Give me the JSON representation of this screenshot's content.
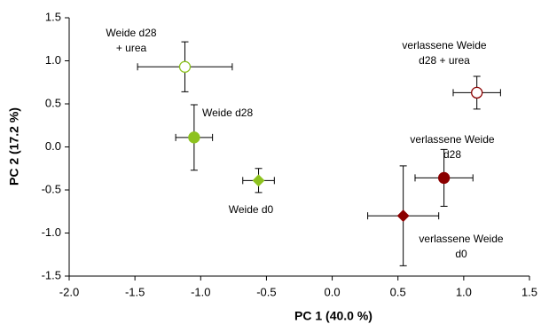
{
  "chart_data": {
    "type": "scatter",
    "x_label": "PC 1 (40.0 %)",
    "y_label": "PC 2 (17.2 %)",
    "xlim": [
      -2.0,
      1.5
    ],
    "ylim": [
      -1.5,
      1.5
    ],
    "xticks": [
      {
        "value": -2,
        "label": "-2.0"
      },
      -1.5,
      {
        "value": -1,
        "label": "-1.0"
      },
      -0.5,
      {
        "value": 0,
        "label": "0.0"
      },
      0.5,
      {
        "value": 1,
        "label": "1.0"
      },
      1.5
    ],
    "yticks": [
      -1.5,
      {
        "value": -1,
        "label": "-1.0"
      },
      -0.5,
      {
        "value": 0,
        "label": "0.0"
      },
      0.5,
      {
        "value": 1,
        "label": "1.0"
      },
      1.5
    ],
    "points": [
      {
        "label": [
          "Weide d28",
          "+ urea"
        ],
        "x": -1.12,
        "y": 0.93,
        "x_err": 0.36,
        "y_err": 0.29,
        "color": "#8dc21f",
        "marker": "circle",
        "filled": false
      },
      {
        "label": [
          "Weide d28"
        ],
        "x": -1.05,
        "y": 0.11,
        "x_err": 0.14,
        "y_err": 0.38,
        "color": "#8dc21f",
        "marker": "circle",
        "filled": true
      },
      {
        "label": [
          "Weide d0"
        ],
        "x": -0.56,
        "y": -0.39,
        "x_err": 0.12,
        "y_err": 0.14,
        "color": "#8dc21f",
        "marker": "diamond",
        "filled": true
      },
      {
        "label": [
          "verlassene Weide",
          "d28 + urea"
        ],
        "x": 1.1,
        "y": 0.63,
        "x_err": 0.18,
        "y_err": 0.19,
        "color": "#8b0000",
        "marker": "circle",
        "filled": false
      },
      {
        "label": [
          "verlassene Weide",
          "d28"
        ],
        "x": 0.85,
        "y": -0.36,
        "x_err": 0.22,
        "y_err": 0.33,
        "color": "#8b0000",
        "marker": "circle",
        "filled": true
      },
      {
        "label": [
          "verlassene Weide",
          "d0"
        ],
        "x": 0.54,
        "y": -0.8,
        "x_err": 0.27,
        "y_err": 0.58,
        "color": "#8b0000",
        "marker": "diamond",
        "filled": true
      }
    ]
  }
}
